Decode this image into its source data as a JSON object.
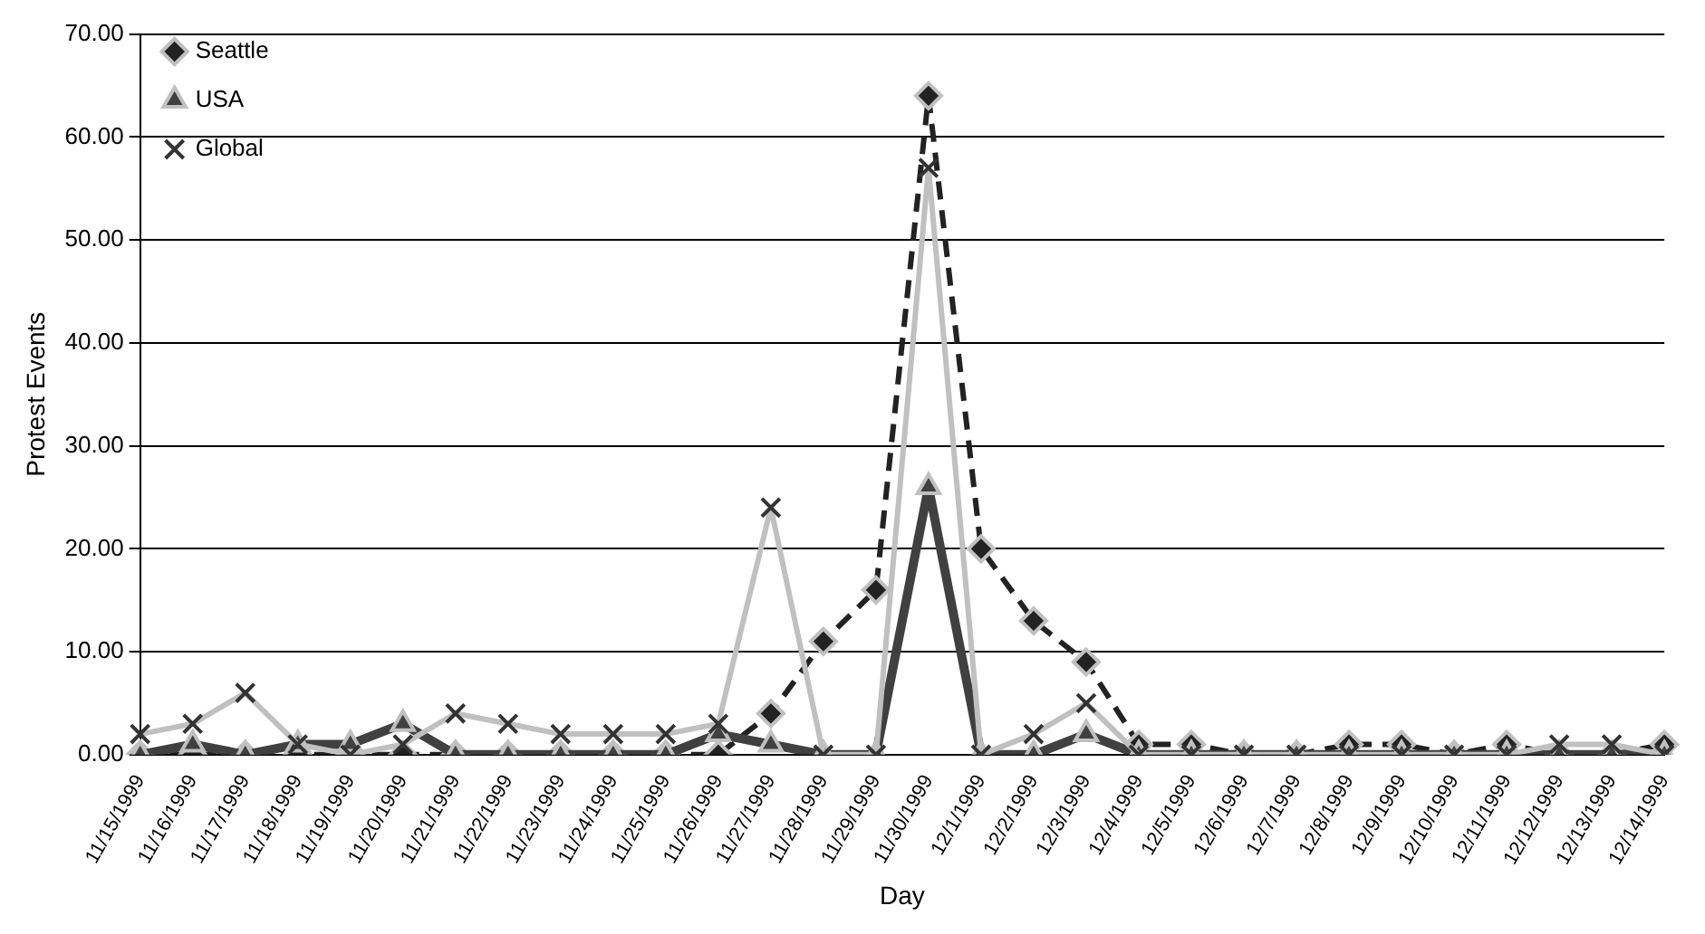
{
  "chart_data": {
    "type": "line",
    "xlabel": "Day",
    "ylabel": "Protest Events",
    "categories": [
      "11/15/1999",
      "11/16/1999",
      "11/17/1999",
      "11/18/1999",
      "11/19/1999",
      "11/20/1999",
      "11/21/1999",
      "11/22/1999",
      "11/23/1999",
      "11/24/1999",
      "11/25/1999",
      "11/26/1999",
      "11/27/1999",
      "11/28/1999",
      "11/29/1999",
      "11/30/1999",
      "12/1/1999",
      "12/2/1999",
      "12/3/1999",
      "12/4/1999",
      "12/5/1999",
      "12/6/1999",
      "12/7/1999",
      "12/8/1999",
      "12/9/1999",
      "12/10/1999",
      "12/11/1999",
      "12/12/1999",
      "12/13/1999",
      "12/14/1999"
    ],
    "series": [
      {
        "name": "Seattle",
        "color": "#222222",
        "marker": "diamond",
        "line_style": "dashed",
        "values": [
          0,
          0,
          0,
          0,
          0,
          0,
          0,
          0,
          0,
          0,
          0,
          0,
          4,
          11,
          16,
          64,
          20,
          13,
          9,
          1,
          1,
          0,
          0,
          1,
          1,
          0,
          1,
          0,
          0,
          1
        ]
      },
      {
        "name": "USA",
        "color": "#404040",
        "marker": "triangle",
        "line_style": "solid",
        "values": [
          0,
          1,
          0,
          1,
          1,
          3,
          0,
          0,
          0,
          0,
          0,
          2,
          1,
          0,
          0,
          26,
          0,
          0,
          2,
          0,
          0,
          0,
          0,
          0,
          0,
          0,
          0,
          0,
          0,
          0
        ]
      },
      {
        "name": "Global",
        "color": "#c0c0c0",
        "marker": "cross",
        "line_style": "solid",
        "values": [
          2,
          3,
          6,
          1,
          0,
          1,
          4,
          3,
          2,
          2,
          2,
          3,
          24,
          0,
          0,
          57,
          0,
          2,
          5,
          0,
          0,
          0,
          0,
          0,
          0,
          0,
          0,
          1,
          1,
          0
        ]
      }
    ],
    "ylim": [
      0,
      70
    ],
    "yticks": [
      {
        "value": 0,
        "label": "0.00"
      },
      {
        "value": 10,
        "label": "10.00"
      },
      {
        "value": 20,
        "label": "20.00"
      },
      {
        "value": 30,
        "label": "30.00"
      },
      {
        "value": 40,
        "label": "40.00"
      },
      {
        "value": 50,
        "label": "50.00"
      },
      {
        "value": 60,
        "label": "60.00"
      },
      {
        "value": 70,
        "label": "70.00"
      }
    ],
    "grid": "y",
    "legend": "top left"
  }
}
